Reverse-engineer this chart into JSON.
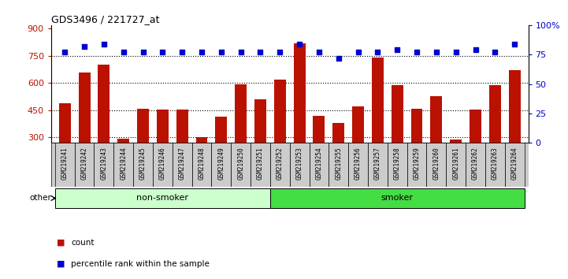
{
  "title": "GDS3496 / 221727_at",
  "samples": [
    "GSM219241",
    "GSM219242",
    "GSM219243",
    "GSM219244",
    "GSM219245",
    "GSM219246",
    "GSM219247",
    "GSM219248",
    "GSM219249",
    "GSM219250",
    "GSM219251",
    "GSM219252",
    "GSM219253",
    "GSM219254",
    "GSM219255",
    "GSM219256",
    "GSM219257",
    "GSM219258",
    "GSM219259",
    "GSM219260",
    "GSM219261",
    "GSM219262",
    "GSM219263",
    "GSM219264"
  ],
  "counts": [
    490,
    660,
    700,
    295,
    460,
    455,
    455,
    300,
    415,
    595,
    510,
    620,
    820,
    420,
    380,
    470,
    740,
    590,
    460,
    530,
    290,
    455,
    590,
    670
  ],
  "percentile_ranks": [
    77,
    82,
    84,
    77,
    77,
    77,
    77,
    77,
    77,
    77,
    77,
    77,
    84,
    77,
    72,
    77,
    77,
    79,
    77,
    77,
    77,
    79,
    77,
    84
  ],
  "groups": [
    "non-smoker",
    "non-smoker",
    "non-smoker",
    "non-smoker",
    "non-smoker",
    "non-smoker",
    "non-smoker",
    "non-smoker",
    "non-smoker",
    "non-smoker",
    "non-smoker",
    "smoker",
    "smoker",
    "smoker",
    "smoker",
    "smoker",
    "smoker",
    "smoker",
    "smoker",
    "smoker",
    "smoker",
    "smoker",
    "smoker",
    "smoker"
  ],
  "ylim_left": [
    270,
    920
  ],
  "ylim_right": [
    0,
    100
  ],
  "yticks_left": [
    300,
    450,
    600,
    750,
    900
  ],
  "yticks_right": [
    0,
    25,
    50,
    75,
    100
  ],
  "hlines": [
    300,
    450,
    600,
    750
  ],
  "bar_color": "#bb1100",
  "dot_color": "#0000cc",
  "non_smoker_color": "#ccffcc",
  "smoker_color": "#44dd44",
  "tick_bg_color": "#cccccc",
  "bar_width": 0.6,
  "legend_count_color": "#bb1100",
  "legend_pct_color": "#0000cc"
}
